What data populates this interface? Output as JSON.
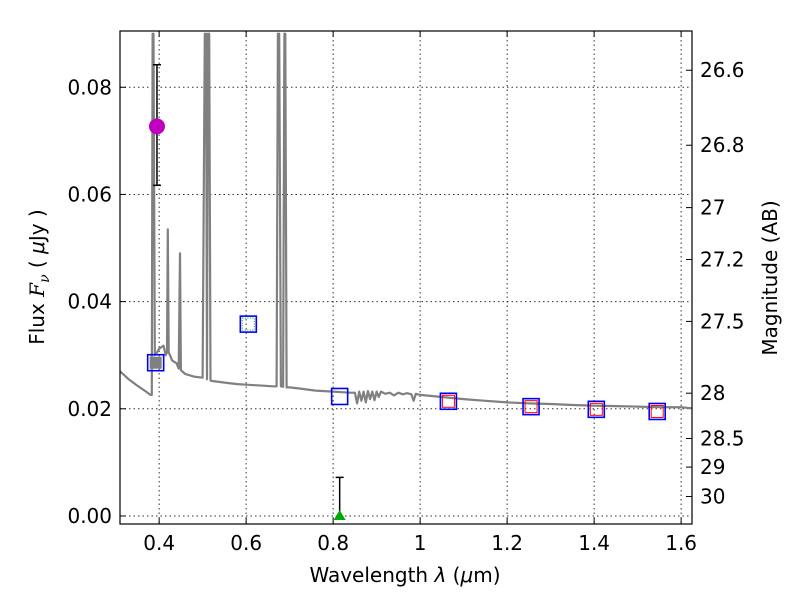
{
  "chart_data": {
    "type": "scatter",
    "title": "",
    "xlabel": "Wavelength  λ (μm)",
    "xlabel_parts": {
      "prefix": "Wavelength  ",
      "lambda": "λ",
      "unit_open": " (",
      "mu": "μ",
      "unit_rest": "m)"
    },
    "ylabel": "Flux  Fν  ( μJy )",
    "ylabel_parts": {
      "word": "Flux  ",
      "F": "F",
      "nu": "ν",
      "open": "  ( ",
      "mu": "μ",
      "unit": "Jy",
      "close": " )"
    },
    "y2label": "Magnitude (AB)",
    "xlim": [
      0.31,
      1.625
    ],
    "ylim": [
      -0.0015,
      0.0905
    ],
    "grid": true,
    "x_ticks": [
      0.4,
      0.6,
      0.8,
      1.0,
      1.2,
      1.4,
      1.6
    ],
    "x_tick_labels": [
      "0.4",
      "0.6",
      "0.8",
      "1",
      "1.2",
      "1.4",
      "1.6"
    ],
    "y_ticks": [
      0.0,
      0.02,
      0.04,
      0.06,
      0.08
    ],
    "y_tick_labels": [
      "0.00",
      "0.02",
      "0.04",
      "0.06",
      "0.08"
    ],
    "y2_ticks": [
      {
        "mag": 26.6,
        "label": "26.6"
      },
      {
        "mag": 26.8,
        "label": "26.8"
      },
      {
        "mag": 27.0,
        "label": "27"
      },
      {
        "mag": 27.2,
        "label": "27.2"
      },
      {
        "mag": 27.5,
        "label": "27.5"
      },
      {
        "mag": 28.0,
        "label": "28"
      },
      {
        "mag": 28.5,
        "label": "28.5"
      },
      {
        "mag": 29.0,
        "label": "29"
      },
      {
        "mag": 30.0,
        "label": "30"
      }
    ],
    "sed_model": {
      "name": "model SED",
      "color": "#808080",
      "x": [
        0.31,
        0.33,
        0.35,
        0.37,
        0.38,
        0.383,
        0.385,
        0.387,
        0.39,
        0.395,
        0.4,
        0.41,
        0.415,
        0.418,
        0.42,
        0.422,
        0.425,
        0.43,
        0.44,
        0.445,
        0.448,
        0.45,
        0.46,
        0.48,
        0.5,
        0.505,
        0.508,
        0.51,
        0.512,
        0.515,
        0.518,
        0.52,
        0.54,
        0.56,
        0.58,
        0.6,
        0.62,
        0.64,
        0.66,
        0.67,
        0.673,
        0.676,
        0.68,
        0.685,
        0.688,
        0.69,
        0.693,
        0.7,
        0.72,
        0.74,
        0.76,
        0.78,
        0.8,
        0.82,
        0.84,
        0.85,
        0.855,
        0.86,
        0.865,
        0.87,
        0.875,
        0.88,
        0.885,
        0.89,
        0.895,
        0.9,
        0.905,
        0.91,
        0.92,
        0.93,
        0.94,
        0.95,
        0.96,
        0.97,
        0.98,
        0.985,
        0.99,
        1.0,
        1.05,
        1.1,
        1.15,
        1.2,
        1.25,
        1.3,
        1.35,
        1.4,
        1.45,
        1.5,
        1.55,
        1.6,
        1.625
      ],
      "y": [
        0.027,
        0.0255,
        0.0243,
        0.0232,
        0.0226,
        0.0226,
        0.09,
        0.09,
        0.03,
        0.0305,
        0.0312,
        0.0318,
        0.03,
        0.0305,
        0.0535,
        0.0305,
        0.03,
        0.029,
        0.0285,
        0.0275,
        0.049,
        0.0272,
        0.0265,
        0.026,
        0.0258,
        0.09,
        0.09,
        0.0255,
        0.09,
        0.09,
        0.0253,
        0.0252,
        0.025,
        0.0248,
        0.0246,
        0.0245,
        0.0244,
        0.0243,
        0.0242,
        0.0242,
        0.09,
        0.09,
        0.0242,
        0.0241,
        0.09,
        0.09,
        0.024,
        0.024,
        0.0238,
        0.0236,
        0.0234,
        0.0233,
        0.0232,
        0.0231,
        0.023,
        0.023,
        0.021,
        0.0232,
        0.0215,
        0.0232,
        0.0212,
        0.0233,
        0.0218,
        0.0232,
        0.0216,
        0.0232,
        0.0222,
        0.0232,
        0.0228,
        0.023,
        0.0225,
        0.023,
        0.0227,
        0.0229,
        0.0227,
        0.0215,
        0.0228,
        0.0226,
        0.0222,
        0.0218,
        0.0215,
        0.0212,
        0.021,
        0.0209,
        0.0207,
        0.0206,
        0.0205,
        0.0204,
        0.0203,
        0.0203,
        0.0201
      ]
    },
    "observed_points": [
      {
        "name": "detection",
        "x": 0.395,
        "y": 0.0727,
        "err_low": 0.0617,
        "err_high": 0.0842,
        "color": "#bf00bf"
      }
    ],
    "upper_limit_points": [
      {
        "name": "non-detection",
        "x": 0.815,
        "y": 0.0,
        "err_high": 0.0072,
        "color": "#00aa00"
      }
    ],
    "model_photometry": {
      "name": "model photometry",
      "blue_color": "#0000ff",
      "inner_color": "#ff0000",
      "green_color": "#00aa00",
      "points": [
        {
          "x": 0.392,
          "y": 0.0286,
          "inner": "gray"
        },
        {
          "x": 0.605,
          "y": 0.0358,
          "inner": "green"
        },
        {
          "x": 0.815,
          "y": 0.0223,
          "inner": "none"
        },
        {
          "x": 1.065,
          "y": 0.0214,
          "inner": "red"
        },
        {
          "x": 1.255,
          "y": 0.0204,
          "inner": "red"
        },
        {
          "x": 1.405,
          "y": 0.0199,
          "inner": "red"
        },
        {
          "x": 1.545,
          "y": 0.0195,
          "inner": "red"
        }
      ]
    }
  }
}
